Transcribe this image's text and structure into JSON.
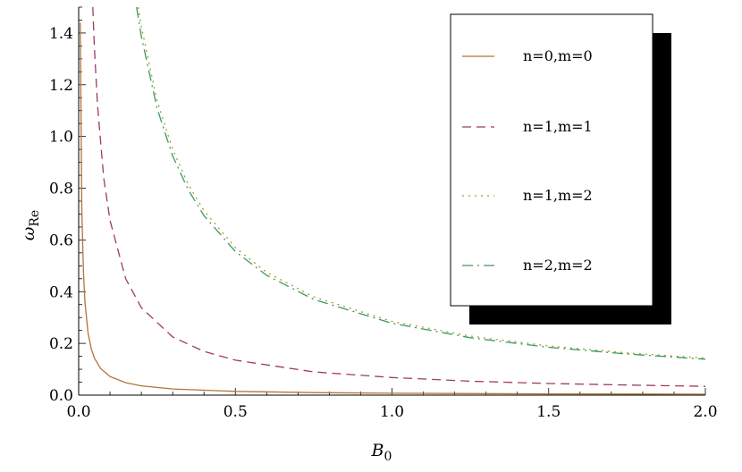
{
  "chart_data": {
    "type": "line",
    "xlabel": "B",
    "xlabel_sub": "0",
    "ylabel": "ω",
    "ylabel_sub": "Re",
    "xlim": [
      0,
      2.0
    ],
    "ylim": [
      0,
      1.5
    ],
    "x_ticks": [
      "0.0",
      "0.5",
      "1.0",
      "1.5",
      "2.0"
    ],
    "y_ticks": [
      "0.0",
      "0.2",
      "0.4",
      "0.6",
      "0.8",
      "1.0",
      "1.2",
      "1.4"
    ],
    "legend_position": "top-right",
    "series": [
      {
        "name": "n=0,m=0",
        "color": "#b0753a",
        "dash": "solid",
        "x": [
          0.005,
          0.01,
          0.015,
          0.02,
          0.03,
          0.04,
          0.05,
          0.07,
          0.1,
          0.15,
          0.2,
          0.3,
          0.5,
          0.75,
          1.0,
          1.5,
          2.0
        ],
        "y": [
          1.44,
          0.72,
          0.48,
          0.36,
          0.24,
          0.18,
          0.144,
          0.103,
          0.072,
          0.048,
          0.036,
          0.024,
          0.0144,
          0.0096,
          0.0072,
          0.0048,
          0.0036
        ]
      },
      {
        "name": "n=1,m=1",
        "color": "#9b3a6a",
        "dash": "dashed",
        "x": [
          0.045,
          0.05,
          0.06,
          0.08,
          0.1,
          0.15,
          0.2,
          0.3,
          0.4,
          0.5,
          0.75,
          1.0,
          1.25,
          1.5,
          1.75,
          2.0
        ],
        "y": [
          1.5,
          1.35,
          1.125,
          0.84,
          0.675,
          0.45,
          0.338,
          0.225,
          0.169,
          0.135,
          0.09,
          0.068,
          0.054,
          0.045,
          0.039,
          0.034
        ]
      },
      {
        "name": "n=1,m=2",
        "color": "#a89a2a",
        "dash": "dotted",
        "x": [
          0.19,
          0.2,
          0.25,
          0.3,
          0.35,
          0.4,
          0.5,
          0.6,
          0.75,
          1.0,
          1.25,
          1.5,
          1.75,
          2.0
        ],
        "y": [
          1.5,
          1.425,
          1.14,
          0.95,
          0.814,
          0.713,
          0.57,
          0.475,
          0.38,
          0.285,
          0.228,
          0.19,
          0.163,
          0.143
        ]
      },
      {
        "name": "n=2,m=2",
        "color": "#3a9a5a",
        "dash": "dashdot",
        "x": [
          0.185,
          0.2,
          0.25,
          0.3,
          0.35,
          0.4,
          0.5,
          0.6,
          0.75,
          1.0,
          1.25,
          1.5,
          1.75,
          2.0
        ],
        "y": [
          1.5,
          1.387,
          1.11,
          0.925,
          0.793,
          0.694,
          0.555,
          0.463,
          0.37,
          0.278,
          0.222,
          0.185,
          0.159,
          0.139
        ]
      }
    ]
  }
}
